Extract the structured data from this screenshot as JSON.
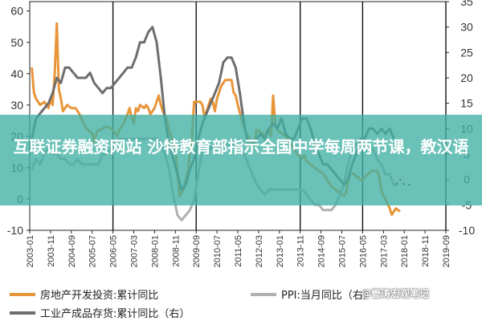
{
  "overlay": {
    "title": "互联证券融资网站 沙特教育部指示全国中学每周两节课，教汉语"
  },
  "watermark": "@管涛宏观笔记",
  "chart_data": {
    "type": "line",
    "title": "",
    "xlabel": "",
    "ylabel": "",
    "y_left_ticks": [
      -10,
      0,
      10,
      20,
      30,
      40,
      50,
      60
    ],
    "y_right_ticks": [
      -10,
      -5,
      0,
      5,
      10,
      15,
      20,
      25,
      30,
      35
    ],
    "ylim_left": [
      -10,
      63
    ],
    "ylim_right": [
      -10,
      35
    ],
    "x_ticks": [
      "2003-01",
      "2003-11",
      "2004-09",
      "2005-07",
      "2006-05",
      "2007-03",
      "2008-01",
      "2008-11",
      "2009-09",
      "2010-07",
      "2011-05",
      "2012-03",
      "2013-01",
      "2013-11",
      "2014-09",
      "2015-07",
      "2016-05",
      "2017-03",
      "2018-01",
      "2018-11",
      "2019-09"
    ],
    "x_range_months": [
      0,
      200
    ],
    "x_unit": "months from 2003-01",
    "vertical_lines": [
      "2006-05",
      "2009-09",
      "2013-11",
      "2016-05",
      "2019-09"
    ],
    "grid": false,
    "legend_position": "bottom",
    "series": [
      {
        "name": "房地产开发投资:累计同比",
        "axis": "left",
        "color": "#E8953A",
        "points": [
          [
            1,
            42
          ],
          [
            2,
            34
          ],
          [
            3,
            32
          ],
          [
            5,
            30
          ],
          [
            7,
            31
          ],
          [
            9,
            29
          ],
          [
            10,
            32
          ],
          [
            11,
            30
          ],
          [
            12,
            40
          ],
          [
            13,
            56
          ],
          [
            14,
            35
          ],
          [
            15,
            32
          ],
          [
            16,
            28
          ],
          [
            18,
            30
          ],
          [
            20,
            29
          ],
          [
            22,
            29
          ],
          [
            23,
            28
          ],
          [
            24,
            27
          ],
          [
            26,
            24
          ],
          [
            28,
            22
          ],
          [
            30,
            21
          ],
          [
            31,
            18
          ],
          [
            32,
            21
          ],
          [
            33,
            22
          ],
          [
            34,
            22
          ],
          [
            36,
            23
          ],
          [
            38,
            23
          ],
          [
            40,
            22
          ],
          [
            41,
            21
          ],
          [
            42,
            20
          ],
          [
            43,
            22
          ],
          [
            45,
            24
          ],
          [
            47,
            27
          ],
          [
            48,
            29
          ],
          [
            49,
            26
          ],
          [
            50,
            24
          ],
          [
            51,
            29
          ],
          [
            52,
            28
          ],
          [
            53,
            30
          ],
          [
            55,
            29
          ],
          [
            56,
            30
          ],
          [
            57,
            29
          ],
          [
            58,
            27
          ],
          [
            60,
            29
          ],
          [
            61,
            31
          ],
          [
            62,
            33
          ],
          [
            63,
            30
          ],
          [
            64,
            28
          ],
          [
            66,
            25
          ],
          [
            67,
            22
          ],
          [
            68,
            20
          ],
          [
            70,
            16
          ],
          [
            72,
            1
          ],
          [
            74,
            3
          ],
          [
            76,
            9
          ],
          [
            78,
            20
          ],
          [
            79,
            31
          ],
          [
            80,
            31
          ],
          [
            82,
            31
          ],
          [
            83,
            30
          ],
          [
            84,
            26
          ],
          [
            86,
            30
          ],
          [
            87,
            32
          ],
          [
            88,
            31
          ],
          [
            89,
            28
          ],
          [
            90,
            32
          ],
          [
            92,
            36
          ],
          [
            94,
            38
          ],
          [
            96,
            38
          ],
          [
            97,
            38
          ],
          [
            98,
            34
          ],
          [
            99,
            33
          ],
          [
            100,
            30
          ],
          [
            102,
            25
          ],
          [
            104,
            21
          ],
          [
            105,
            20
          ],
          [
            106,
            19
          ],
          [
            107,
            17
          ],
          [
            108,
            17
          ],
          [
            109,
            22
          ],
          [
            110,
            22
          ],
          [
            111,
            21
          ],
          [
            112,
            21
          ],
          [
            113,
            19
          ],
          [
            114,
            22
          ],
          [
            115,
            22
          ],
          [
            116,
            20
          ],
          [
            117,
            33
          ],
          [
            118,
            24
          ],
          [
            119,
            22
          ],
          [
            121,
            21
          ],
          [
            123,
            20
          ],
          [
            125,
            18
          ],
          [
            127,
            16
          ],
          [
            129,
            14
          ],
          [
            131,
            13
          ],
          [
            132,
            14
          ],
          [
            133,
            12
          ],
          [
            135,
            11
          ],
          [
            137,
            10
          ],
          [
            139,
            9
          ],
          [
            141,
            8
          ],
          [
            143,
            6
          ],
          [
            145,
            4
          ],
          [
            147,
            3
          ],
          [
            149,
            2
          ],
          [
            151,
            1
          ],
          [
            152,
            2
          ],
          [
            153,
            6
          ],
          [
            154,
            8
          ],
          [
            156,
            8
          ],
          [
            157,
            7
          ],
          [
            158,
            7
          ],
          [
            159,
            6
          ],
          [
            160,
            6
          ],
          [
            161,
            7
          ],
          [
            163,
            8
          ],
          [
            164,
            9
          ],
          [
            166,
            9
          ],
          [
            167,
            9
          ],
          [
            168,
            7
          ],
          [
            169,
            3
          ],
          [
            170,
            1
          ],
          [
            171,
            0
          ],
          [
            173,
            -3
          ],
          [
            174,
            -5
          ],
          [
            176,
            -3
          ],
          [
            178,
            -4
          ]
        ]
      },
      {
        "name": "PPI:当月同比（右）",
        "axis": "right",
        "color": "#B0B0B0",
        "points": [
          [
            1,
            2
          ],
          [
            3,
            4
          ],
          [
            5,
            3
          ],
          [
            7,
            5
          ],
          [
            9,
            6
          ],
          [
            11,
            5
          ],
          [
            13,
            5
          ],
          [
            15,
            4
          ],
          [
            17,
            4
          ],
          [
            19,
            3
          ],
          [
            21,
            3
          ],
          [
            23,
            4
          ],
          [
            25,
            3
          ],
          [
            27,
            3
          ],
          [
            29,
            3
          ],
          [
            31,
            3
          ],
          [
            33,
            3
          ],
          [
            35,
            5
          ],
          [
            37,
            5
          ],
          [
            39,
            6
          ],
          [
            41,
            7
          ],
          [
            43,
            8
          ],
          [
            45,
            8
          ],
          [
            47,
            8
          ],
          [
            49,
            8
          ],
          [
            51,
            8
          ],
          [
            53,
            8
          ],
          [
            55,
            8
          ],
          [
            57,
            8
          ],
          [
            59,
            8
          ],
          [
            61,
            8
          ],
          [
            63,
            7
          ],
          [
            65,
            5
          ],
          [
            67,
            2
          ],
          [
            69,
            -3
          ],
          [
            71,
            -7
          ],
          [
            73,
            -8
          ],
          [
            75,
            -7
          ],
          [
            77,
            -6
          ],
          [
            79,
            -4
          ],
          [
            81,
            1
          ],
          [
            83,
            6
          ],
          [
            85,
            7
          ],
          [
            87,
            6
          ],
          [
            89,
            7
          ],
          [
            91,
            6
          ],
          [
            93,
            7
          ],
          [
            95,
            7
          ],
          [
            97,
            7
          ],
          [
            99,
            7
          ],
          [
            101,
            6
          ],
          [
            103,
            5
          ],
          [
            105,
            3
          ],
          [
            107,
            1
          ],
          [
            109,
            -1
          ],
          [
            111,
            -2
          ],
          [
            113,
            -3
          ],
          [
            115,
            -2
          ],
          [
            117,
            -2
          ],
          [
            119,
            -2
          ],
          [
            121,
            -2
          ],
          [
            123,
            -2
          ],
          [
            125,
            -2
          ],
          [
            127,
            -2
          ],
          [
            129,
            -2
          ],
          [
            131,
            -2
          ],
          [
            133,
            -3
          ],
          [
            135,
            -4
          ],
          [
            137,
            -5
          ],
          [
            139,
            -5
          ],
          [
            141,
            -6
          ],
          [
            143,
            -6
          ],
          [
            145,
            -6
          ],
          [
            147,
            -5
          ],
          [
            149,
            -3
          ],
          [
            151,
            -1
          ],
          [
            153,
            3
          ],
          [
            155,
            6
          ],
          [
            157,
            7
          ],
          [
            159,
            7
          ],
          [
            161,
            6
          ],
          [
            163,
            6
          ],
          [
            165,
            6
          ],
          [
            167,
            4
          ],
          [
            169,
            3
          ],
          [
            171,
            1
          ],
          [
            173,
            1
          ],
          [
            175,
            -1
          ],
          [
            177,
            -1
          ]
        ]
      },
      {
        "name": "PPI:当月同比（右）",
        "axis": "right",
        "color": "#8B1E1E",
        "dashed": true,
        "points": [
          [
            176,
            -1
          ],
          [
            178,
            0
          ],
          [
            180,
            -1
          ],
          [
            182,
            -1
          ],
          [
            184,
            -1
          ]
        ]
      },
      {
        "name": "工业产成品存货:累计同比（右）",
        "axis": "right",
        "color": "#6E6E6E",
        "points": [
          [
            1,
            8
          ],
          [
            3,
            12
          ],
          [
            5,
            13
          ],
          [
            7,
            14
          ],
          [
            9,
            15
          ],
          [
            11,
            17
          ],
          [
            13,
            20
          ],
          [
            15,
            19
          ],
          [
            17,
            22
          ],
          [
            19,
            22
          ],
          [
            21,
            21
          ],
          [
            23,
            20
          ],
          [
            25,
            20
          ],
          [
            27,
            20
          ],
          [
            29,
            21
          ],
          [
            31,
            19
          ],
          [
            33,
            18
          ],
          [
            35,
            17
          ],
          [
            37,
            18
          ],
          [
            39,
            18
          ],
          [
            41,
            19
          ],
          [
            43,
            20
          ],
          [
            45,
            21
          ],
          [
            47,
            22
          ],
          [
            49,
            22
          ],
          [
            51,
            24
          ],
          [
            53,
            27
          ],
          [
            55,
            27
          ],
          [
            57,
            29
          ],
          [
            59,
            30
          ],
          [
            61,
            27
          ],
          [
            63,
            20
          ],
          [
            65,
            12
          ],
          [
            67,
            7
          ],
          [
            69,
            4
          ],
          [
            71,
            1
          ],
          [
            73,
            -2
          ],
          [
            75,
            -1
          ],
          [
            77,
            2
          ],
          [
            79,
            4
          ],
          [
            81,
            8
          ],
          [
            83,
            11
          ],
          [
            85,
            13
          ],
          [
            87,
            15
          ],
          [
            89,
            17
          ],
          [
            91,
            19
          ],
          [
            93,
            23
          ],
          [
            95,
            24
          ],
          [
            97,
            24
          ],
          [
            99,
            22
          ],
          [
            101,
            17
          ],
          [
            103,
            11
          ],
          [
            105,
            7
          ],
          [
            107,
            7
          ],
          [
            109,
            8
          ],
          [
            111,
            9
          ],
          [
            113,
            8
          ],
          [
            115,
            10
          ],
          [
            117,
            11
          ],
          [
            119,
            10
          ],
          [
            121,
            12
          ],
          [
            123,
            9
          ],
          [
            125,
            8
          ],
          [
            127,
            8
          ],
          [
            129,
            10
          ],
          [
            131,
            12
          ],
          [
            133,
            12
          ],
          [
            135,
            10
          ],
          [
            137,
            7
          ],
          [
            139,
            5
          ],
          [
            141,
            3
          ],
          [
            143,
            3
          ],
          [
            145,
            2
          ],
          [
            147,
            1
          ],
          [
            149,
            0
          ],
          [
            151,
            -1
          ],
          [
            153,
            0
          ],
          [
            155,
            3
          ],
          [
            157,
            5
          ],
          [
            159,
            8
          ],
          [
            161,
            8
          ],
          [
            163,
            10
          ],
          [
            165,
            10
          ],
          [
            167,
            9
          ],
          [
            169,
            10
          ],
          [
            171,
            9
          ],
          [
            173,
            10
          ],
          [
            175,
            8
          ]
        ]
      }
    ]
  }
}
